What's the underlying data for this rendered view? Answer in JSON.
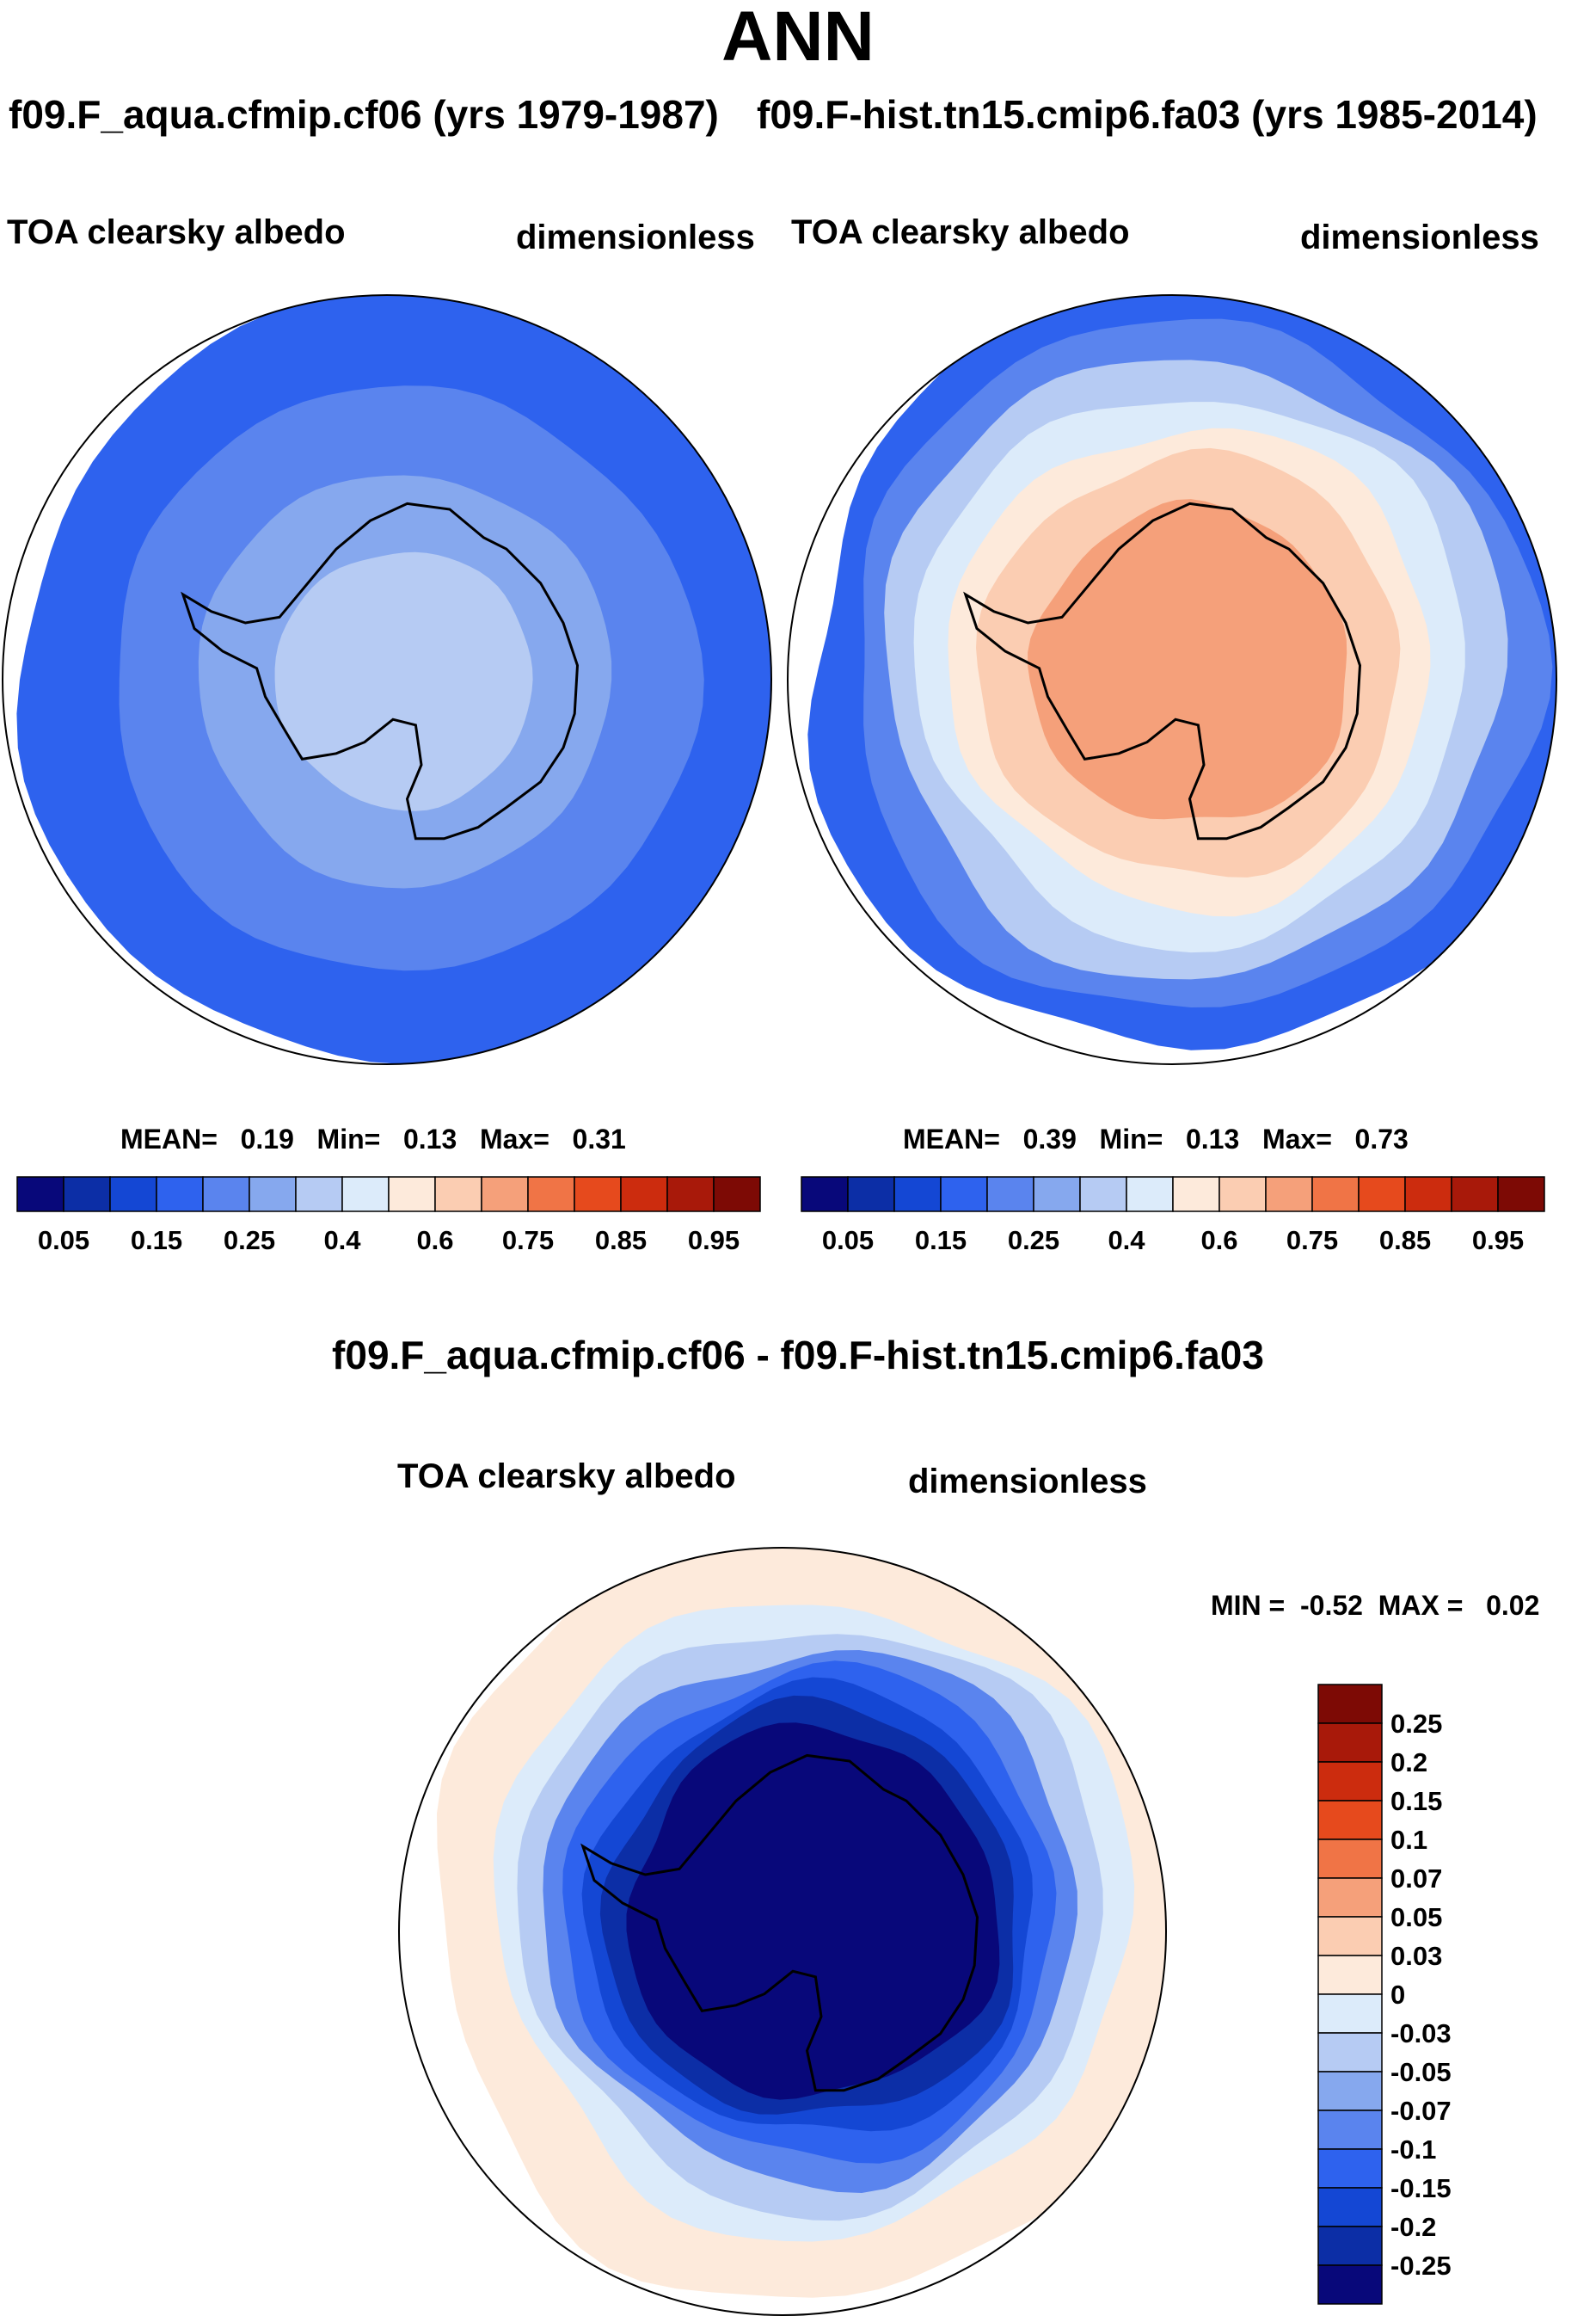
{
  "title": "ANN",
  "chart_data": [
    {
      "type": "heatmap",
      "projection": "south-polar-stereographic",
      "case_title": "f09.F_aqua.cfmip.cf06 (yrs 1979-1987)",
      "variable": "TOA clearsky albedo",
      "units": "dimensionless",
      "stats": {
        "mean_label": "MEAN=",
        "mean": "0.19",
        "min_label": "Min=",
        "min": "0.13",
        "max_label": "Max=",
        "max": "0.31"
      },
      "levels": [
        0.05,
        0.1,
        0.15,
        0.2,
        0.25,
        0.3,
        0.4,
        0.5,
        0.6,
        0.7,
        0.75,
        0.8,
        0.85,
        0.9,
        0.95
      ],
      "colorbar_labels": [
        "0.05",
        "0.15",
        "0.25",
        "0.4",
        "0.6",
        "0.75",
        "0.85",
        "0.95"
      ],
      "field_levels_outer_to_pole": [
        0.15,
        0.2,
        0.25,
        0.3
      ]
    },
    {
      "type": "heatmap",
      "projection": "south-polar-stereographic",
      "case_title": "f09.F-hist.tn15.cmip6.fa03 (yrs 1985-2014)",
      "variable": "TOA clearsky albedo",
      "units": "dimensionless",
      "stats": {
        "mean_label": "MEAN=",
        "mean": "0.39",
        "min_label": "Min=",
        "min": "0.13",
        "max_label": "Max=",
        "max": "0.73"
      },
      "levels": [
        0.05,
        0.1,
        0.15,
        0.2,
        0.25,
        0.3,
        0.4,
        0.5,
        0.6,
        0.7,
        0.75,
        0.8,
        0.85,
        0.9,
        0.95
      ],
      "colorbar_labels": [
        "0.05",
        "0.15",
        "0.25",
        "0.4",
        "0.6",
        "0.75",
        "0.85",
        "0.95"
      ],
      "field_levels_outer_to_pole": [
        0.15,
        0.2,
        0.3,
        0.4,
        0.5,
        0.6,
        0.7
      ]
    },
    {
      "type": "heatmap",
      "projection": "south-polar-stereographic",
      "case_title": "f09.F_aqua.cfmip.cf06 - f09.F-hist.tn15.cmip6.fa03",
      "variable": "TOA clearsky albedo",
      "units": "dimensionless",
      "stats": {
        "min_label": "MIN =",
        "min": "-0.52",
        "max_label": "MAX =",
        "max": "0.02"
      },
      "levels": [
        -0.25,
        -0.2,
        -0.15,
        -0.1,
        -0.07,
        -0.05,
        -0.03,
        0,
        0.03,
        0.05,
        0.07,
        0.1,
        0.15,
        0.2,
        0.25
      ],
      "colorbar_labels": [
        "0.25",
        "0.2",
        "0.15",
        "0.1",
        "0.07",
        "0.05",
        "0.03",
        "0",
        "-0.03",
        "-0.05",
        "-0.07",
        "-0.1",
        "-0.15",
        "-0.2",
        "-0.25"
      ],
      "field_levels_outer_to_pole": [
        0.0,
        -0.03,
        -0.05,
        -0.1,
        -0.15,
        -0.2,
        -0.25,
        -0.3
      ]
    }
  ],
  "colors": {
    "palette": [
      "#08087a",
      "#0c2ea6",
      "#1447d4",
      "#2e62ee",
      "#5a84ee",
      "#86a8ee",
      "#b6cbf3",
      "#dcebfa",
      "#fdeadb",
      "#fbcdb2",
      "#f5a07a",
      "#f07446",
      "#e64a1d",
      "#cc2c0e",
      "#a8190a",
      "#7d0a05"
    ],
    "land_outline": "#000000"
  }
}
